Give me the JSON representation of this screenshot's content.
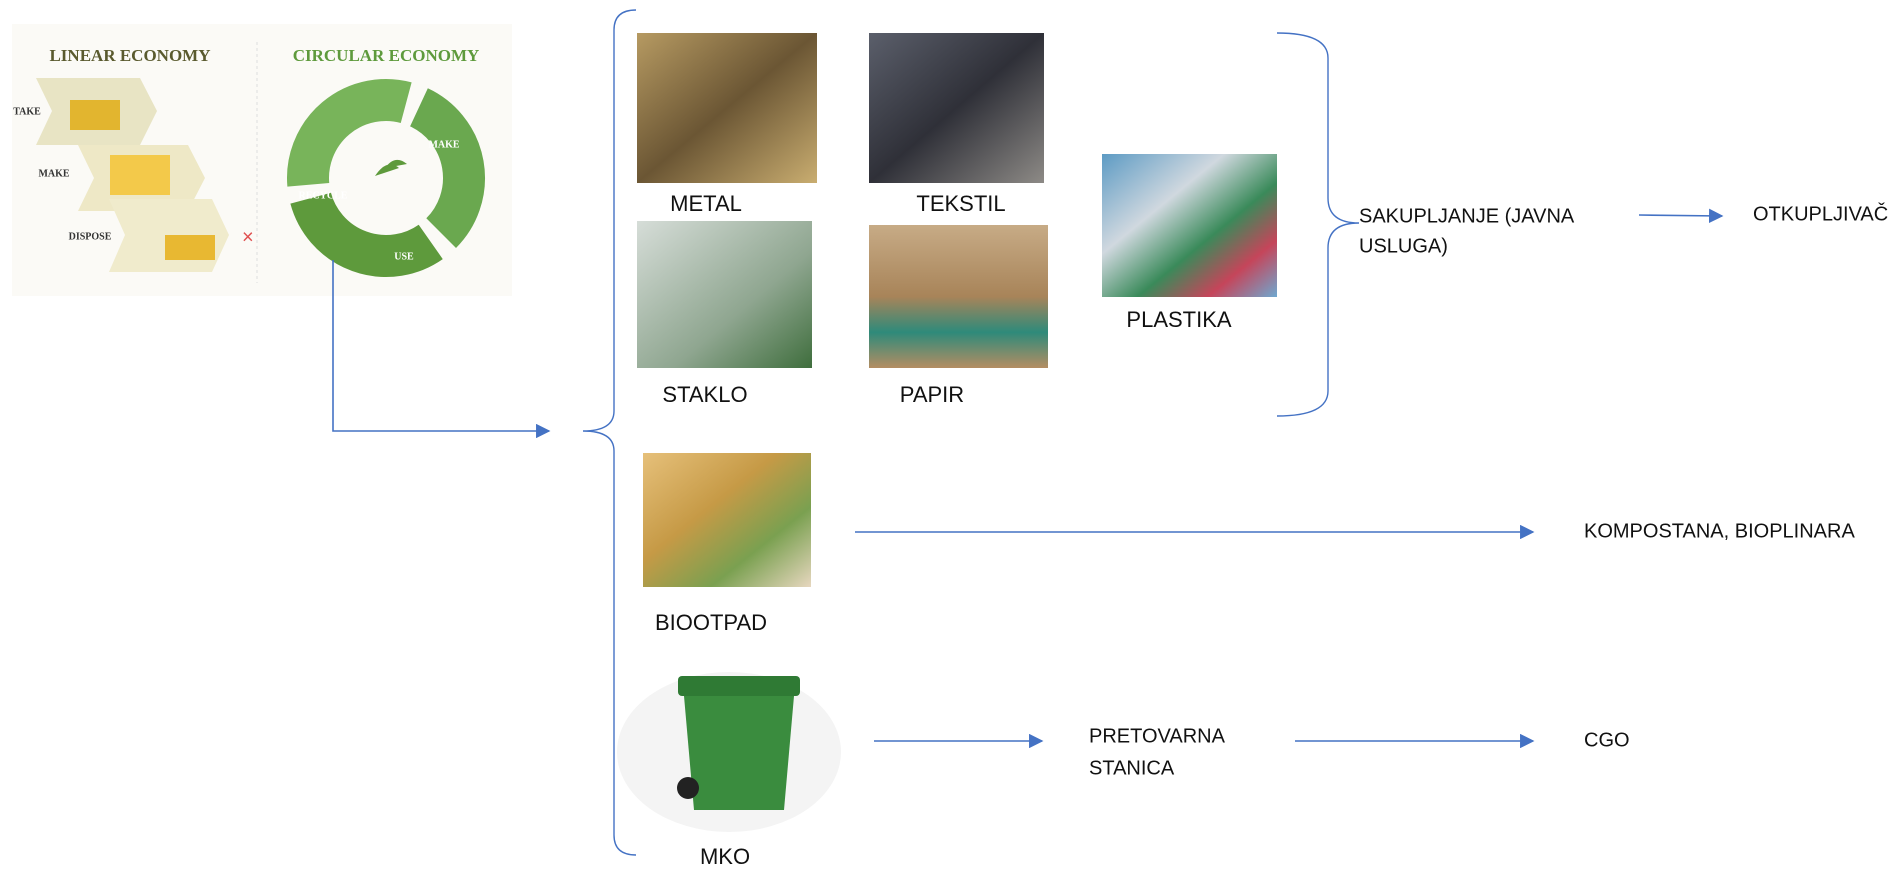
{
  "illustration": {
    "linear_title": "LINEAR ECONOMY",
    "circular_title": "CIRCULAR ECONOMY",
    "linear_steps": [
      "TAKE",
      "MAKE",
      "DISPOSE"
    ],
    "circular_steps": [
      "MAKE",
      "USE",
      "RECYCLE"
    ]
  },
  "materials": {
    "metal": "METAL",
    "tekstil": "TEKSTIL",
    "staklo": "STAKLO",
    "papir": "PAPIR",
    "plastika": "PLASTIKA",
    "biootpad": "BIOOTPAD",
    "mko": "MKO"
  },
  "flows": {
    "collection": [
      "SAKUPLJANJE (JAVNA",
      "USLUGA)"
    ],
    "buyer": "OTKUPLJIVAČ",
    "compost": "KOMPOSTANA, BIOPLINARA",
    "transfer": [
      "PRETOVARNA",
      "STANICA"
    ],
    "cgo": "CGO"
  }
}
